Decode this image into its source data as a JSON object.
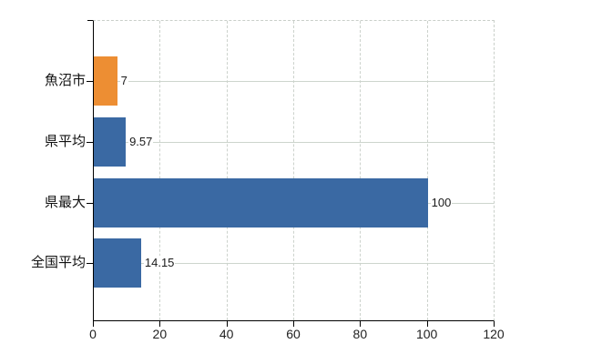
{
  "chart_data": {
    "type": "bar",
    "orientation": "horizontal",
    "categories": [
      "魚沼市",
      "県平均",
      "県最大",
      "全国平均"
    ],
    "values": [
      7,
      9.57,
      100,
      14.15
    ],
    "value_labels": [
      "7",
      "9.57",
      "100",
      "14.15"
    ],
    "bar_colors": [
      "#ed8e33",
      "#3a69a3",
      "#3a69a3",
      "#3a69a3"
    ],
    "xlim": [
      0,
      120
    ],
    "x_ticks": [
      0,
      20,
      40,
      60,
      80,
      100,
      120
    ],
    "grid": true,
    "legend_position": "none",
    "colors": {
      "highlight_bar": "#ed8e33",
      "default_bar": "#3a69a3",
      "axis": "#000000",
      "grid_horizontal": "#cdd5cd",
      "grid_vertical": "#ccd2cc",
      "border_dashed": "#c9cfc9",
      "label_text": "#111111"
    }
  }
}
